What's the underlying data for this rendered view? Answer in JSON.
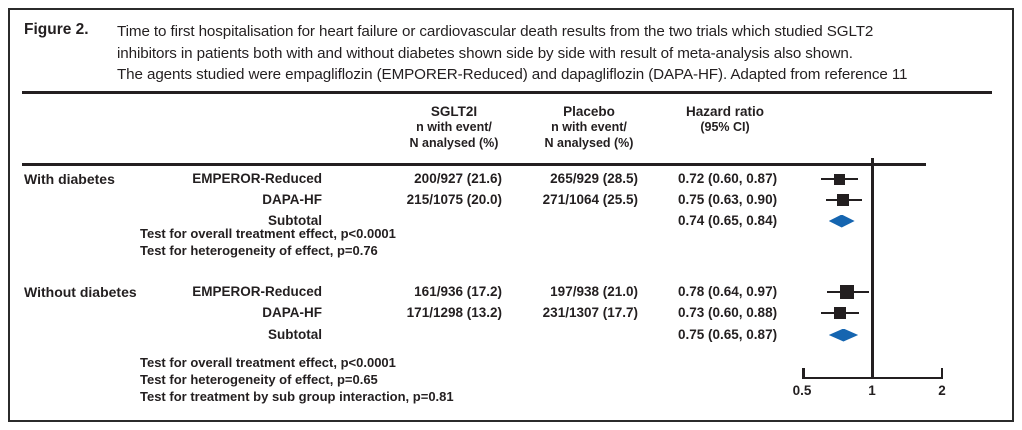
{
  "figure": {
    "label": "Figure 2.",
    "caption_lines": [
      "Time to first hospitalisation for heart failure or cardiovascular death results from the two trials which studied SGLT2",
      "inhibitors in patients both with and without diabetes shown side by side with result of meta-analysis also shown.",
      "The agents studied were empagliflozin (EMPORER-Reduced) and dapagliflozin (DAPA-HF). Adapted from reference 11"
    ]
  },
  "columns": {
    "sglt2i": {
      "title": "SGLT2I",
      "sub1": "n with event/",
      "sub2": "N analysed (%)"
    },
    "placebo": {
      "title": "Placebo",
      "sub1": "n with event/",
      "sub2": "N analysed (%)"
    },
    "hazard": {
      "title": "Hazard ratio",
      "sub1": "(95% CI)"
    }
  },
  "groups": [
    {
      "label": "With diabetes",
      "rows": [
        {
          "trial": "EMPEROR-Reduced",
          "sglt2i": "200/927 (21.6)",
          "placebo": "265/929 (28.5)",
          "hr_text": "0.72 (0.60, 0.87)"
        },
        {
          "trial": "DAPA-HF",
          "sglt2i": "215/1075 (20.0)",
          "placebo": "271/1064 (25.5)",
          "hr_text": "0.75 (0.63, 0.90)"
        },
        {
          "trial": "Subtotal",
          "sglt2i": "",
          "placebo": "",
          "hr_text": "0.74 (0.65, 0.84)"
        }
      ],
      "tests": [
        "Test for overall treatment effect, p<0.0001",
        "Test for heterogeneity of effect, p=0.76"
      ]
    },
    {
      "label": "Without diabetes",
      "rows": [
        {
          "trial": "EMPEROR-Reduced",
          "sglt2i": "161/936 (17.2)",
          "placebo": "197/938 (21.0)",
          "hr_text": "0.78 (0.64, 0.97)"
        },
        {
          "trial": "DAPA-HF",
          "sglt2i": "171/1298 (13.2)",
          "placebo": "231/1307 (17.7)",
          "hr_text": "0.73 (0.60, 0.88)"
        },
        {
          "trial": "Subtotal",
          "sglt2i": "",
          "placebo": "",
          "hr_text": "0.75 (0.65, 0.87)"
        }
      ],
      "tests": [
        "Test for overall treatment effect, p<0.0001",
        "Test for heterogeneity of effect, p=0.65",
        "Test for treatment by sub group interaction, p=0.81"
      ]
    }
  ],
  "chart_data": {
    "type": "forest",
    "x_scale": "log2",
    "axis_ticks": [
      "0.5",
      "1",
      "2"
    ],
    "reference_line": 1,
    "xlim": [
      0.5,
      2
    ],
    "series": [
      {
        "group": "With diabetes",
        "name": "EMPEROR-Reduced",
        "hr": 0.72,
        "ci": [
          0.6,
          0.87
        ],
        "marker": "square",
        "marker_size": 11
      },
      {
        "group": "With diabetes",
        "name": "DAPA-HF",
        "hr": 0.75,
        "ci": [
          0.63,
          0.9
        ],
        "marker": "square",
        "marker_size": 12
      },
      {
        "group": "With diabetes",
        "name": "Subtotal",
        "hr": 0.74,
        "ci": [
          0.65,
          0.84
        ],
        "marker": "diamond",
        "marker_size": 13
      },
      {
        "group": "Without diabetes",
        "name": "EMPEROR-Reduced",
        "hr": 0.78,
        "ci": [
          0.64,
          0.97
        ],
        "marker": "square",
        "marker_size": 14
      },
      {
        "group": "Without diabetes",
        "name": "DAPA-HF",
        "hr": 0.73,
        "ci": [
          0.6,
          0.88
        ],
        "marker": "square",
        "marker_size": 12
      },
      {
        "group": "Without diabetes",
        "name": "Subtotal",
        "hr": 0.75,
        "ci": [
          0.65,
          0.87
        ],
        "marker": "diamond",
        "marker_size": 13
      }
    ]
  },
  "colors": {
    "ink": "#231f20",
    "diamond": "#1565b0"
  }
}
